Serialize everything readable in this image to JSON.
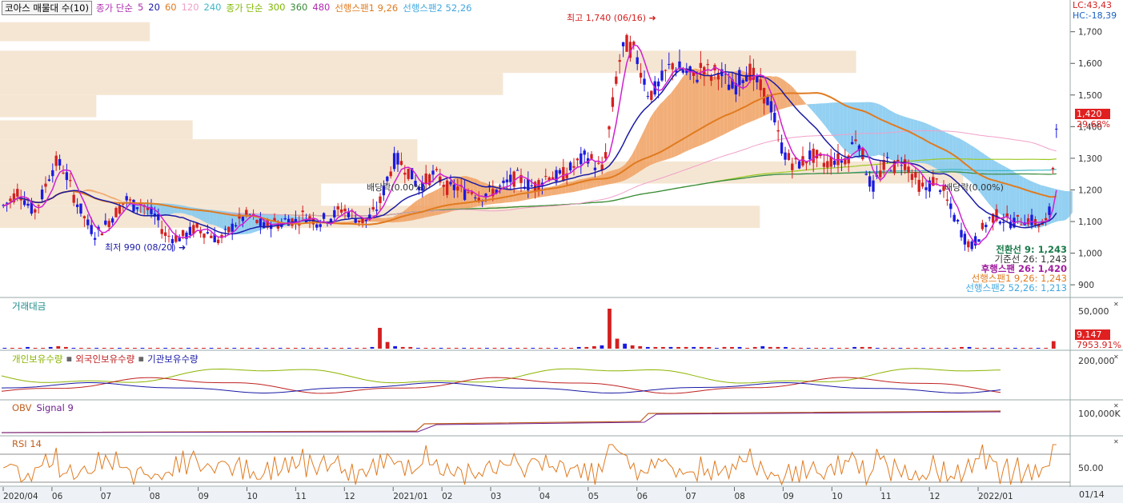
{
  "legend": {
    "title": "코아스 매물대 수(10)",
    "items": [
      {
        "text": "종가 단순",
        "color": "#b02cb0"
      },
      {
        "text": "5",
        "color": "#b02cb0"
      },
      {
        "text": "20",
        "color": "#1a1aa6"
      },
      {
        "text": "60",
        "color": "#e07b20"
      },
      {
        "text": "120",
        "color": "#f0a0c8"
      },
      {
        "text": "240",
        "color": "#40b8c8"
      },
      {
        "text": "종가 단순",
        "color": "#7fb800"
      },
      {
        "text": "300",
        "color": "#7fb800"
      },
      {
        "text": "360",
        "color": "#3a8a3a"
      },
      {
        "text": "480",
        "color": "#b02cb0"
      },
      {
        "text": "선행스팬1 9,26",
        "color": "#e07b20"
      },
      {
        "text": "선행스팬2 52,26",
        "color": "#40a8e0"
      }
    ]
  },
  "corner": {
    "lc": "LC:43,43",
    "hc": "HC:-18,39"
  },
  "annotations": {
    "high": "최고 1,740 (06/16)",
    "low": "최저 990 (08/20)",
    "dividend1": "배당락(0.00%)",
    "dividend2": "배당락(0.00%)"
  },
  "ichimoku": {
    "conversion": "전환선 9: 1,243",
    "base": "기준선 26: 1,243",
    "lagging": "후행스팬 26: 1,420",
    "span1": "선행스팬1 9,26: 1,243",
    "span2": "선행스팬2 52,26: 1,213"
  },
  "price_badge": {
    "value": "1,420",
    "pct": "29.68%"
  },
  "panels": {
    "volume": {
      "title": "거래대금",
      "tick": "50,000",
      "badge": "9,147",
      "pct": "7953.91%"
    },
    "holdings": {
      "titles": [
        "개인보유수량",
        "외국인보유수량",
        "기관보유수량"
      ],
      "tick": "200,000"
    },
    "obv": {
      "title": "OBV",
      "signal": "Signal 9",
      "tick": "100,000K"
    },
    "rsi": {
      "title": "RSI 14",
      "tick": "50.00"
    }
  },
  "x_axis_labels": [
    "2020/04",
    "06",
    "07",
    "08",
    "09",
    "10",
    "11",
    "12",
    "2021/01",
    "02",
    "03",
    "04",
    "05",
    "06",
    "07",
    "08",
    "09",
    "10",
    "11",
    "12",
    "2022/01"
  ],
  "x_axis_corner": "01/14",
  "colors": {
    "up": "#d42020",
    "down": "#1a1ae0",
    "ma5": "#d020d0",
    "ma20": "#1a1aa6",
    "ma60": "#e07b20",
    "ma120": "#f0a0c8",
    "ma240": "#40b8c8",
    "ma300": "#9cc820",
    "ma360": "#3a8a3a",
    "cloud_bull": "#f0a060",
    "cloud_bear": "#80c8f0",
    "volume_profile": "#f5e6d3"
  },
  "chart_data": {
    "type": "candlestick",
    "y_ticks": [
      900,
      1000,
      1100,
      1200,
      1300,
      1400,
      1500,
      1600,
      1700
    ],
    "y_range": [
      870,
      1770
    ],
    "last_close": 1420,
    "high": {
      "value": 1740,
      "date": "06/16"
    },
    "low": {
      "value": 990,
      "date": "08/20"
    },
    "volume_profile": [
      {
        "from": 1730,
        "to": 1670,
        "strength": 0.14
      },
      {
        "from": 1640,
        "to": 1570,
        "strength": 0.8
      },
      {
        "from": 1570,
        "to": 1500,
        "strength": 0.47
      },
      {
        "from": 1500,
        "to": 1430,
        "strength": 0.09
      },
      {
        "from": 1420,
        "to": 1360,
        "strength": 0.18
      },
      {
        "from": 1360,
        "to": 1290,
        "strength": 0.39
      },
      {
        "from": 1290,
        "to": 1220,
        "strength": 0.9
      },
      {
        "from": 1220,
        "to": 1150,
        "strength": 0.3
      },
      {
        "from": 1150,
        "to": 1080,
        "strength": 0.71
      }
    ],
    "close_series": [
      1150,
      1170,
      1200,
      1160,
      1130,
      1180,
      1250,
      1290,
      1260,
      1190,
      1140,
      1090,
      1060,
      1080,
      1110,
      1140,
      1170,
      1150,
      1160,
      1130,
      1110,
      1060,
      1050,
      1050,
      1060,
      1080,
      1070,
      1060,
      1040,
      1060,
      1090,
      1110,
      1120,
      1100,
      1080,
      1100,
      1090,
      1110,
      1100,
      1120,
      1110,
      1100,
      1110,
      1120,
      1140,
      1130,
      1110,
      1100,
      1120,
      1160,
      1240,
      1300,
      1280,
      1250,
      1210,
      1230,
      1250,
      1230,
      1200,
      1210,
      1190,
      1200,
      1180,
      1190,
      1200,
      1210,
      1230,
      1240,
      1220,
      1210,
      1230,
      1250,
      1240,
      1250,
      1270,
      1290,
      1310,
      1280,
      1260,
      1420,
      1600,
      1660,
      1640,
      1580,
      1500,
      1520,
      1560,
      1600,
      1580,
      1570,
      1550,
      1600,
      1560,
      1580,
      1540,
      1520,
      1560,
      1580,
      1540,
      1500,
      1460,
      1350,
      1300,
      1280,
      1290,
      1310,
      1300,
      1280,
      1300,
      1290,
      1310,
      1380,
      1290,
      1200,
      1250,
      1290,
      1270,
      1300,
      1260,
      1220,
      1200,
      1230,
      1210,
      1150,
      1100,
      1050,
      1020,
      1060,
      1100,
      1120,
      1110,
      1100,
      1100,
      1110,
      1100,
      1090,
      1100,
      1420
    ],
    "volume_series": [
      1,
      1,
      1,
      2,
      1,
      1,
      2,
      3,
      2,
      1,
      1,
      1,
      1,
      1,
      1,
      1,
      1,
      1,
      1,
      1,
      1,
      1,
      1,
      1,
      1,
      1,
      1,
      1,
      1,
      1,
      1,
      1,
      1,
      1,
      1,
      1,
      1,
      1,
      1,
      1,
      1,
      1,
      1,
      1,
      1,
      1,
      1,
      1,
      2,
      25,
      8,
      3,
      2,
      2,
      1,
      1,
      1,
      1,
      1,
      1,
      1,
      1,
      1,
      1,
      1,
      1,
      1,
      1,
      1,
      1,
      1,
      1,
      1,
      1,
      1,
      2,
      2,
      3,
      4,
      48,
      12,
      6,
      4,
      3,
      2,
      2,
      2,
      2,
      2,
      2,
      2,
      2,
      2,
      1,
      2,
      2,
      2,
      1,
      2,
      3,
      2,
      2,
      2,
      1,
      1,
      1,
      1,
      1,
      1,
      1,
      1,
      2,
      2,
      2,
      1,
      1,
      1,
      1,
      1,
      1,
      1,
      1,
      1,
      1,
      1,
      2,
      2,
      1,
      1,
      1,
      1,
      1,
      1,
      1,
      1,
      1,
      1,
      9
    ]
  }
}
